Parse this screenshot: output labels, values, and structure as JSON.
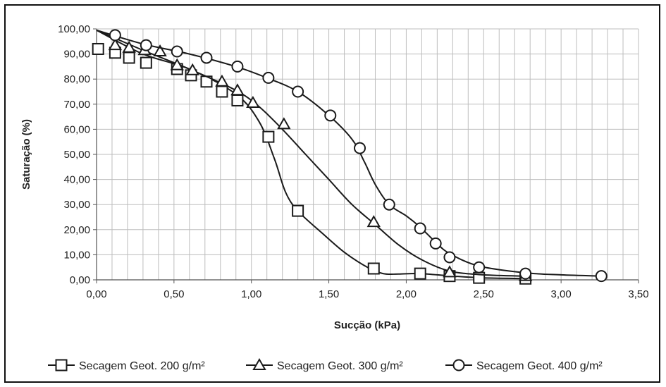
{
  "chart_data": {
    "type": "line",
    "title": "",
    "xlabel": "Sucção (kPa)",
    "ylabel": "Saturação (%)",
    "xlim": [
      0,
      3.5
    ],
    "ylim": [
      0,
      100
    ],
    "x_ticks": [
      "0,00",
      "0,50",
      "1,00",
      "1,50",
      "2,00",
      "2,50",
      "3,00",
      "3,50"
    ],
    "y_ticks": [
      "0,00",
      "10,00",
      "20,00",
      "30,00",
      "40,00",
      "50,00",
      "60,00",
      "70,00",
      "80,00",
      "90,00",
      "100,00"
    ],
    "grid": true,
    "legend_position": "bottom",
    "series": [
      {
        "name": "Secagem Geot. 200 g/m²",
        "marker": "square",
        "points": [
          [
            0.01,
            92.0
          ],
          [
            0.12,
            90.5
          ],
          [
            0.21,
            88.5
          ],
          [
            0.32,
            86.5
          ],
          [
            0.52,
            84.0
          ],
          [
            0.61,
            81.5
          ],
          [
            0.71,
            79.0
          ],
          [
            0.81,
            75.0
          ],
          [
            0.91,
            71.5
          ],
          [
            1.11,
            57.0
          ],
          [
            1.3,
            27.5
          ],
          [
            1.79,
            4.5
          ],
          [
            2.09,
            2.5
          ],
          [
            2.28,
            1.5
          ],
          [
            2.47,
            0.8
          ],
          [
            2.77,
            0.5
          ]
        ],
        "curve": [
          [
            0.0,
            99.5
          ],
          [
            0.3,
            90.0
          ],
          [
            0.6,
            84.0
          ],
          [
            0.9,
            74.0
          ],
          [
            1.05,
            63.0
          ],
          [
            1.15,
            48.0
          ],
          [
            1.22,
            35.0
          ],
          [
            1.3,
            27.5
          ],
          [
            1.45,
            19.0
          ],
          [
            1.6,
            11.0
          ],
          [
            1.75,
            5.0
          ],
          [
            1.85,
            2.5
          ],
          [
            1.95,
            2.3
          ],
          [
            2.09,
            2.5
          ],
          [
            2.3,
            1.5
          ],
          [
            2.5,
            0.8
          ],
          [
            2.77,
            0.5
          ]
        ]
      },
      {
        "name": "Secagem Geot. 300 g/m²",
        "marker": "triangle",
        "points": [
          [
            0.12,
            93.5
          ],
          [
            0.21,
            92.5
          ],
          [
            0.31,
            91.5
          ],
          [
            0.41,
            91.0
          ],
          [
            0.52,
            85.5
          ],
          [
            0.62,
            83.5
          ],
          [
            0.81,
            79.0
          ],
          [
            0.91,
            75.5
          ],
          [
            1.01,
            70.5
          ],
          [
            1.21,
            62.0
          ],
          [
            1.79,
            23.0
          ],
          [
            2.28,
            3.0
          ],
          [
            2.77,
            1.5
          ]
        ],
        "curve": [
          [
            0.0,
            99.5
          ],
          [
            0.3,
            91.5
          ],
          [
            0.6,
            84.0
          ],
          [
            0.9,
            75.5
          ],
          [
            1.05,
            69.0
          ],
          [
            1.2,
            60.0
          ],
          [
            1.35,
            50.0
          ],
          [
            1.5,
            40.0
          ],
          [
            1.65,
            30.0
          ],
          [
            1.8,
            22.0
          ],
          [
            1.95,
            14.0
          ],
          [
            2.1,
            8.0
          ],
          [
            2.28,
            3.5
          ],
          [
            2.5,
            2.0
          ],
          [
            2.77,
            1.5
          ]
        ]
      },
      {
        "name": "Secagem Geot. 400 g/m²",
        "marker": "circle",
        "points": [
          [
            0.12,
            97.5
          ],
          [
            0.32,
            93.5
          ],
          [
            0.52,
            91.0
          ],
          [
            0.71,
            88.5
          ],
          [
            0.91,
            85.0
          ],
          [
            1.11,
            80.5
          ],
          [
            1.3,
            75.0
          ],
          [
            1.51,
            65.5
          ],
          [
            1.7,
            52.5
          ],
          [
            1.89,
            30.0
          ],
          [
            2.09,
            20.5
          ],
          [
            2.19,
            14.5
          ],
          [
            2.28,
            9.0
          ],
          [
            2.47,
            5.0
          ],
          [
            2.77,
            2.5
          ],
          [
            3.26,
            1.5
          ]
        ],
        "curve": [
          [
            0.0,
            99.5
          ],
          [
            0.3,
            94.0
          ],
          [
            0.6,
            90.0
          ],
          [
            0.9,
            85.0
          ],
          [
            1.1,
            80.5
          ],
          [
            1.3,
            75.0
          ],
          [
            1.5,
            65.5
          ],
          [
            1.65,
            56.0
          ],
          [
            1.73,
            47.0
          ],
          [
            1.8,
            38.0
          ],
          [
            1.89,
            30.0
          ],
          [
            2.0,
            25.5
          ],
          [
            2.09,
            21.0
          ],
          [
            2.19,
            15.0
          ],
          [
            2.28,
            10.5
          ],
          [
            2.47,
            5.5
          ],
          [
            2.77,
            2.8
          ],
          [
            3.0,
            2.0
          ],
          [
            3.26,
            1.5
          ]
        ]
      }
    ]
  }
}
